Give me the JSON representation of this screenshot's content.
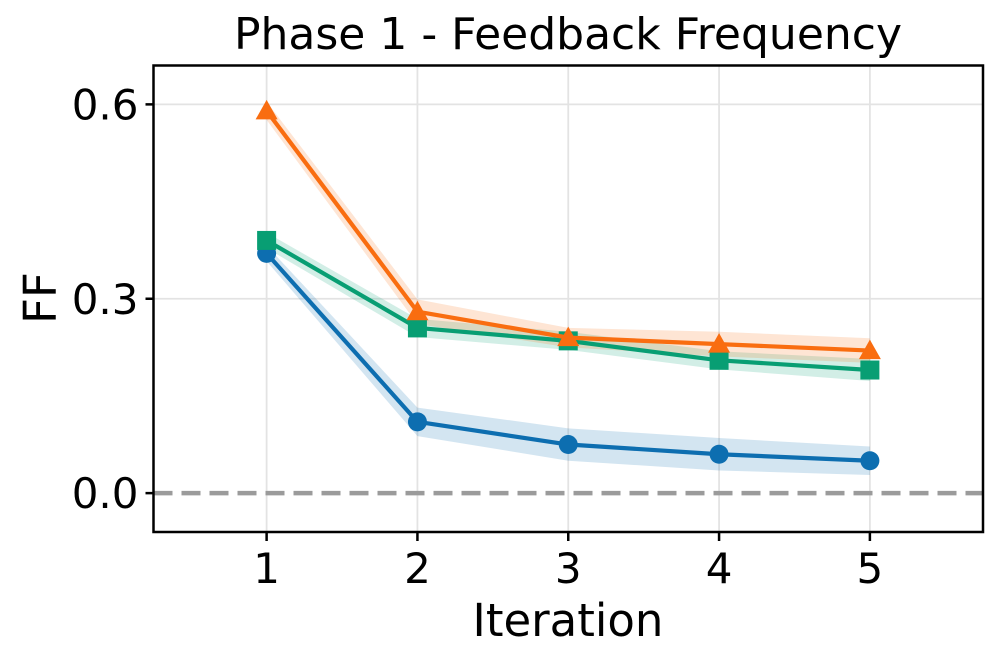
{
  "chart_data": {
    "type": "line",
    "title": "Phase 1 - Feedback Frequency",
    "xlabel": "Iteration",
    "ylabel": "FF",
    "x": [
      1,
      2,
      3,
      4,
      5
    ],
    "xtick_labels": [
      "1",
      "2",
      "3",
      "4",
      "5"
    ],
    "yticks": [
      0.0,
      0.3,
      0.6
    ],
    "ytick_labels": [
      "0.0",
      "0.3",
      "0.6"
    ],
    "xlim": [
      0.25,
      5.75
    ],
    "ylim": [
      -0.06,
      0.66
    ],
    "grid": true,
    "legend": "none",
    "zero_line": {
      "y": 0.0,
      "style": "dashed",
      "color": "#9b9b9b"
    },
    "grid_color": "#e3e3e3",
    "series": [
      {
        "name": "blue",
        "marker": "circle",
        "color": "#0d6eb0",
        "values": [
          0.37,
          0.11,
          0.075,
          0.06,
          0.05
        ],
        "band_halfwidth": [
          0.012,
          0.022,
          0.025,
          0.025,
          0.022
        ]
      },
      {
        "name": "green",
        "marker": "square",
        "color": "#089e73",
        "values": [
          0.39,
          0.255,
          0.235,
          0.205,
          0.19
        ],
        "band_halfwidth": [
          0.012,
          0.014,
          0.014,
          0.014,
          0.017
        ]
      },
      {
        "name": "orange",
        "marker": "triangle-up",
        "color": "#f96d10",
        "values": [
          0.59,
          0.28,
          0.24,
          0.23,
          0.22
        ],
        "band_halfwidth": [
          0.014,
          0.019,
          0.015,
          0.019,
          0.019
        ]
      }
    ]
  }
}
